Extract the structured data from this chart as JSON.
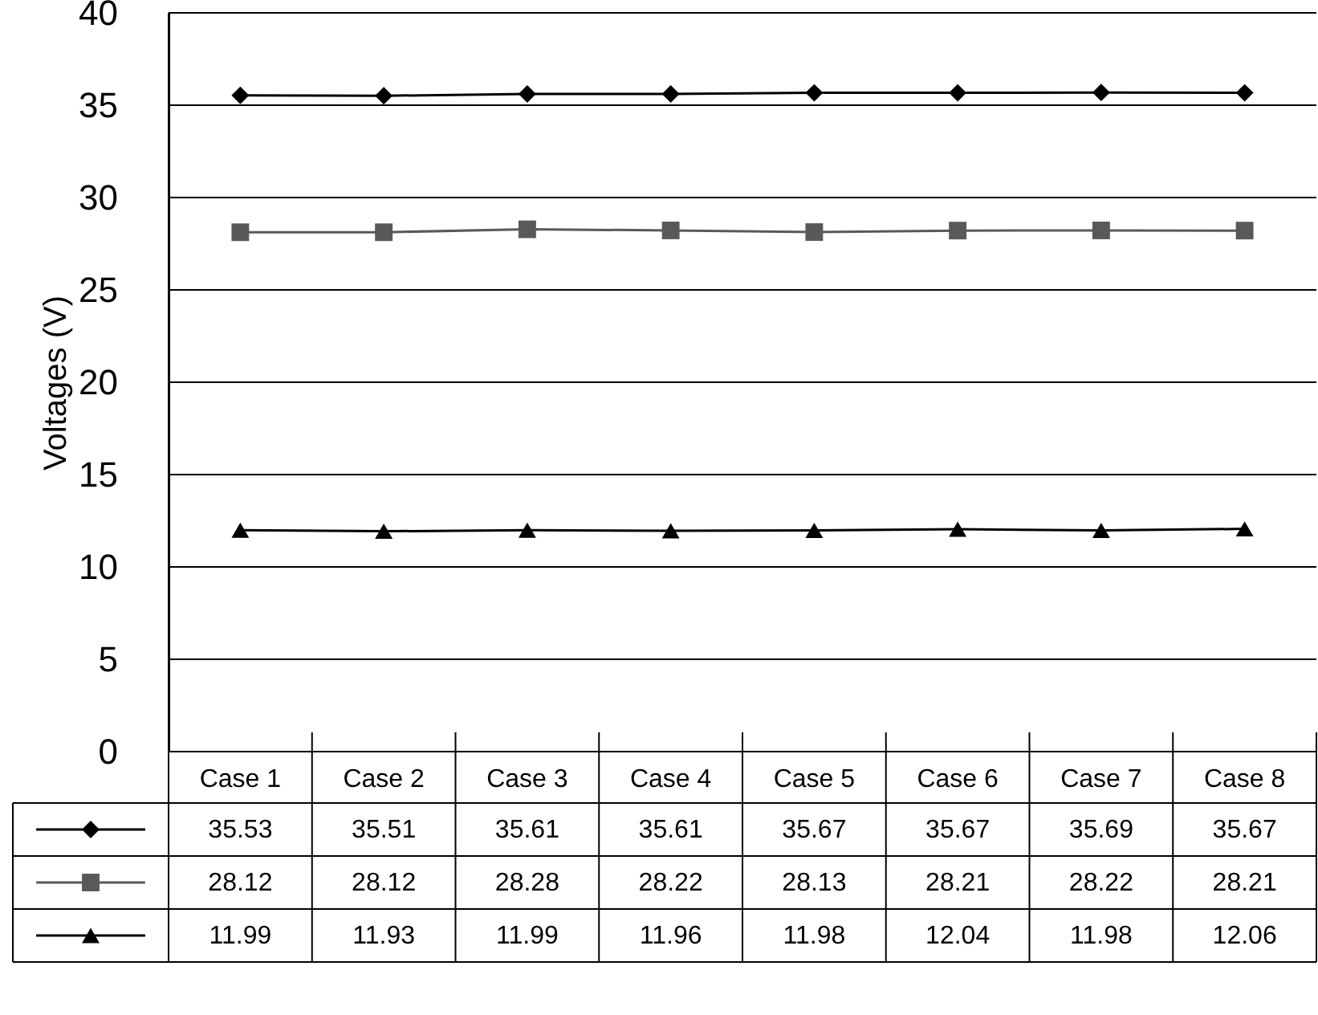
{
  "chart_data": {
    "type": "line",
    "ylabel": "Voltages (V)",
    "categories": [
      "Case 1",
      "Case 2",
      "Case 3",
      "Case 4",
      "Case 5",
      "Case 6",
      "Case 7",
      "Case 8"
    ],
    "series": [
      {
        "color": "#000000",
        "marker": "diamond",
        "values": [
          35.53,
          35.51,
          35.61,
          35.61,
          35.67,
          35.67,
          35.69,
          35.67
        ]
      },
      {
        "color": "#595959",
        "marker": "square",
        "values": [
          28.12,
          28.12,
          28.28,
          28.22,
          28.13,
          28.21,
          28.22,
          28.21
        ]
      },
      {
        "color": "#000000",
        "marker": "triangle",
        "values": [
          11.99,
          11.93,
          11.99,
          11.96,
          11.98,
          12.04,
          11.98,
          12.06
        ]
      }
    ],
    "ylim": [
      0,
      40
    ],
    "yticks": [
      0,
      5,
      10,
      15,
      20,
      25,
      30,
      35,
      40
    ],
    "grid": "y",
    "data_labels": true
  }
}
